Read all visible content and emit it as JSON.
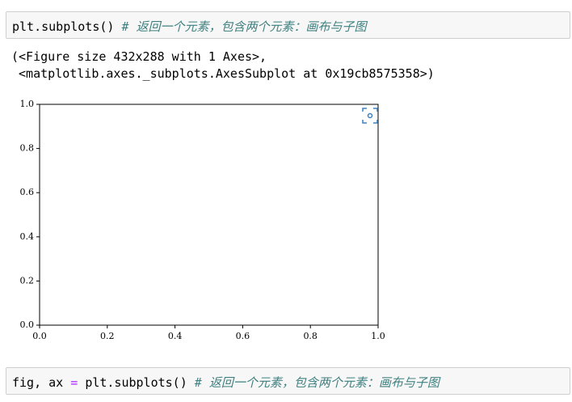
{
  "cells": [
    {
      "code": [
        "plt.subplots()"
      ],
      "comment": "# 返回一个元素，包含两个元素：画布与子图"
    },
    {
      "code": [
        "fig, ax",
        "=",
        "plt.subplots()"
      ],
      "comment": "# 返回一个元素，包含两个元素：画布与子图"
    }
  ],
  "output": {
    "lines": [
      "(<Figure size 432x288 with 1 Axes>,",
      " <matplotlib.axes._subplots.AxesSubplot at 0x19cb8575358>)"
    ]
  },
  "plot": {
    "xlim": [
      0,
      1
    ],
    "ylim": [
      0,
      1
    ],
    "xticks": [
      {
        "value": 0,
        "label": "0.0"
      },
      {
        "value": 0.2,
        "label": "0.2"
      },
      {
        "value": 0.4,
        "label": "0.4"
      },
      {
        "value": 0.6,
        "label": "0.6"
      },
      {
        "value": 0.8,
        "label": "0.8"
      },
      {
        "value": 1,
        "label": "1.0"
      }
    ],
    "yticks": [
      {
        "value": 0,
        "label": "0.0"
      },
      {
        "value": 0.2,
        "label": "0.2"
      },
      {
        "value": 0.4,
        "label": "0.4"
      },
      {
        "value": 0.6,
        "label": "0.6"
      },
      {
        "value": 0.8,
        "label": "0.8"
      },
      {
        "value": 1,
        "label": "1.0"
      }
    ]
  }
}
